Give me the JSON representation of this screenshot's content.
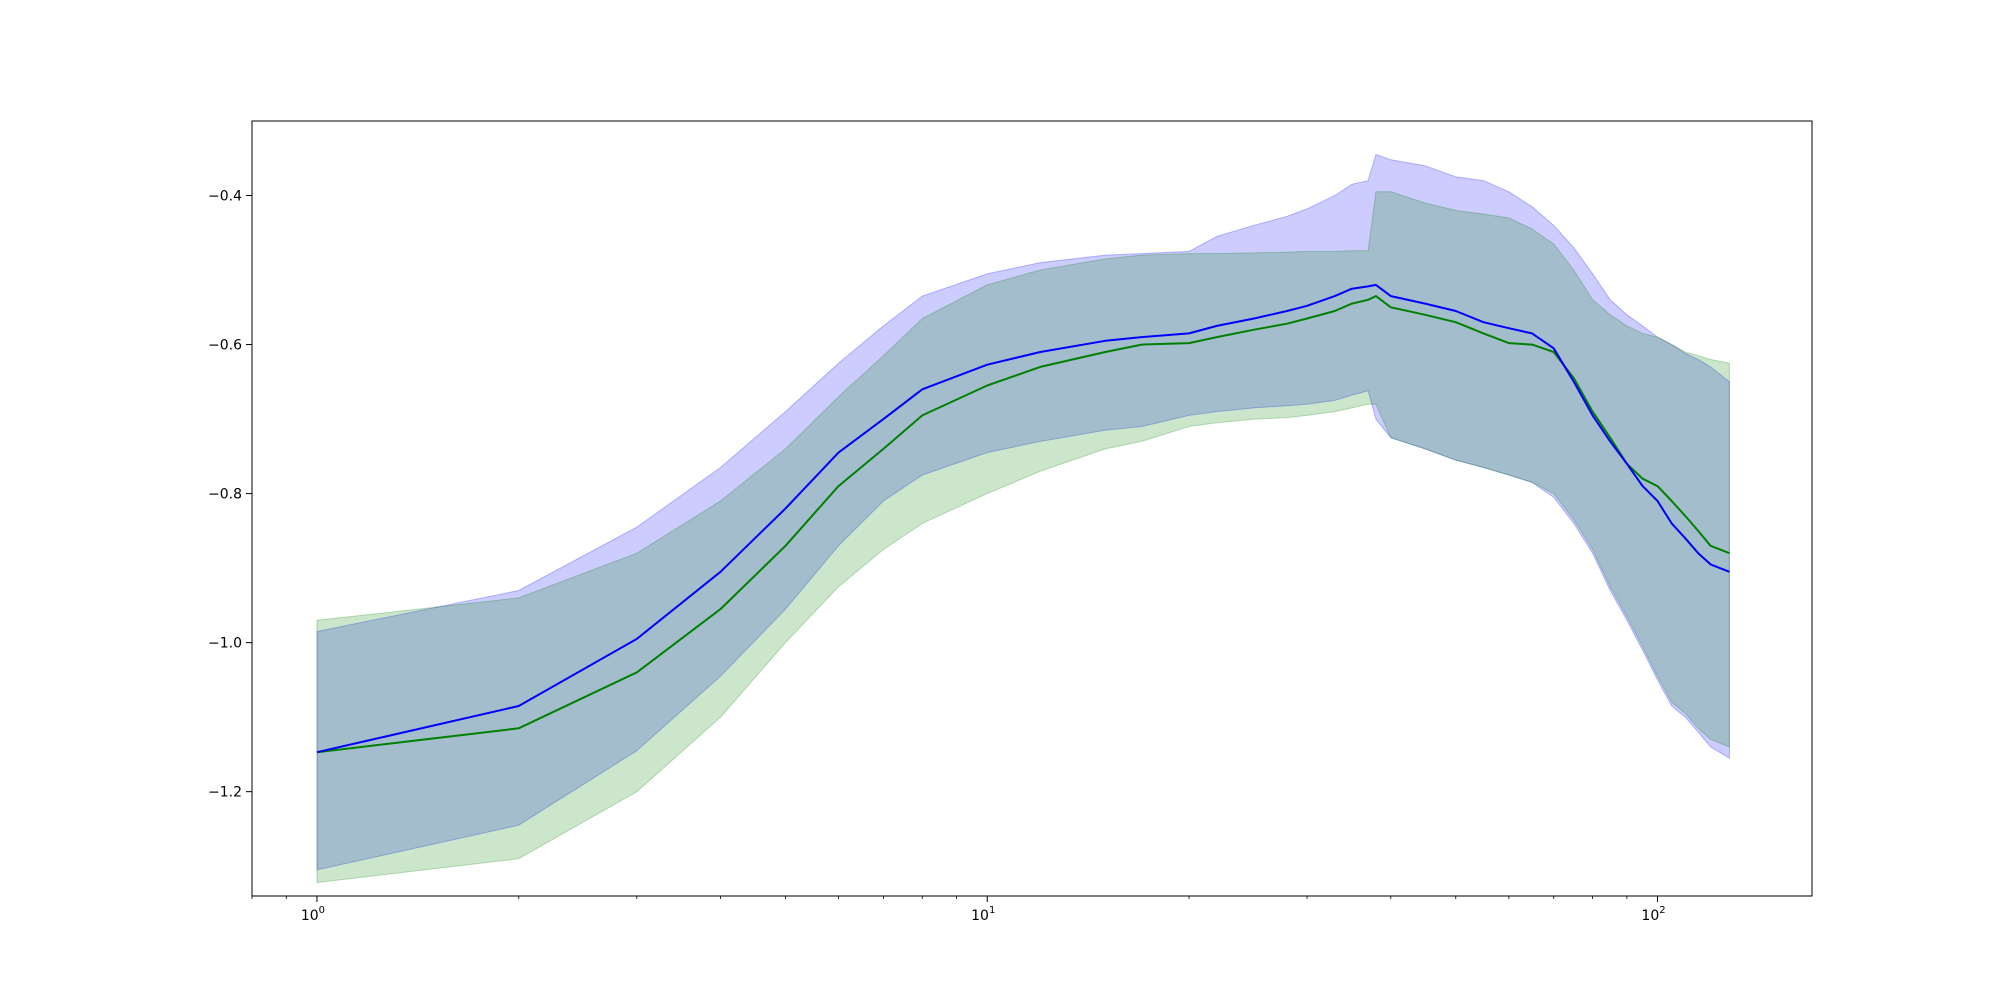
{
  "chart_data": {
    "type": "line",
    "title": "",
    "xlabel": "",
    "ylabel": "",
    "xscale": "log",
    "xlim": [
      0.8,
      170
    ],
    "ylim": [
      -1.34,
      -0.3
    ],
    "grid": false,
    "x_ticks": [
      {
        "value": 1,
        "base": "10",
        "exp": "0"
      },
      {
        "value": 10,
        "base": "10",
        "exp": "1"
      },
      {
        "value": 100,
        "base": "10",
        "exp": "2"
      }
    ],
    "y_ticks": [
      {
        "value": -1.2,
        "label": "−1.2"
      },
      {
        "value": -1.0,
        "label": "−1.0"
      },
      {
        "value": -0.8,
        "label": "−0.8"
      },
      {
        "value": -0.6,
        "label": "−0.6"
      },
      {
        "value": -0.4,
        "label": "−0.4"
      }
    ],
    "series": [
      {
        "color": "#0000ff",
        "band_color": "#0000ff",
        "band_opacity": 0.2,
        "x": [
          1,
          2,
          3,
          4,
          5,
          6,
          7,
          8,
          10,
          12,
          15,
          17,
          20,
          22,
          25,
          28,
          30,
          33,
          35,
          37,
          38,
          40,
          45,
          50,
          55,
          60,
          65,
          70,
          75,
          80,
          85,
          90,
          95,
          100,
          105,
          110,
          115,
          120,
          128
        ],
        "mean": [
          -1.147,
          -1.085,
          -0.995,
          -0.905,
          -0.82,
          -0.745,
          -0.7,
          -0.66,
          -0.627,
          -0.61,
          -0.595,
          -0.59,
          -0.585,
          -0.575,
          -0.565,
          -0.555,
          -0.548,
          -0.535,
          -0.525,
          -0.522,
          -0.52,
          -0.535,
          -0.545,
          -0.555,
          -0.57,
          -0.578,
          -0.585,
          -0.605,
          -0.65,
          -0.695,
          -0.73,
          -0.76,
          -0.79,
          -0.81,
          -0.84,
          -0.86,
          -0.88,
          -0.895,
          -0.905
        ],
        "upper": [
          -0.985,
          -0.93,
          -0.845,
          -0.765,
          -0.69,
          -0.625,
          -0.575,
          -0.535,
          -0.505,
          -0.49,
          -0.48,
          -0.478,
          -0.475,
          -0.455,
          -0.44,
          -0.428,
          -0.418,
          -0.4,
          -0.385,
          -0.38,
          -0.345,
          -0.352,
          -0.36,
          -0.375,
          -0.38,
          -0.395,
          -0.415,
          -0.44,
          -0.47,
          -0.505,
          -0.54,
          -0.56,
          -0.575,
          -0.59,
          -0.6,
          -0.612,
          -0.62,
          -0.63,
          -0.65
        ],
        "lower": [
          -1.305,
          -1.245,
          -1.145,
          -1.045,
          -0.955,
          -0.87,
          -0.81,
          -0.775,
          -0.745,
          -0.73,
          -0.715,
          -0.71,
          -0.695,
          -0.69,
          -0.685,
          -0.682,
          -0.68,
          -0.675,
          -0.668,
          -0.662,
          -0.7,
          -0.725,
          -0.74,
          -0.755,
          -0.765,
          -0.775,
          -0.785,
          -0.805,
          -0.84,
          -0.88,
          -0.93,
          -0.97,
          -1.01,
          -1.05,
          -1.085,
          -1.1,
          -1.12,
          -1.14,
          -1.155
        ]
      },
      {
        "color": "#008000",
        "band_color": "#008000",
        "band_opacity": 0.2,
        "x": [
          1,
          2,
          3,
          4,
          5,
          6,
          7,
          8,
          10,
          12,
          15,
          17,
          20,
          22,
          25,
          28,
          30,
          33,
          35,
          37,
          38,
          40,
          45,
          50,
          55,
          60,
          65,
          70,
          75,
          80,
          85,
          90,
          95,
          100,
          105,
          110,
          115,
          120,
          128
        ],
        "mean": [
          -1.147,
          -1.115,
          -1.04,
          -0.955,
          -0.87,
          -0.79,
          -0.74,
          -0.695,
          -0.655,
          -0.63,
          -0.61,
          -0.6,
          -0.598,
          -0.59,
          -0.58,
          -0.572,
          -0.565,
          -0.555,
          -0.545,
          -0.54,
          -0.535,
          -0.55,
          -0.56,
          -0.57,
          -0.585,
          -0.598,
          -0.6,
          -0.61,
          -0.645,
          -0.69,
          -0.725,
          -0.76,
          -0.78,
          -0.79,
          -0.81,
          -0.83,
          -0.85,
          -0.87,
          -0.88
        ],
        "upper": [
          -0.97,
          -0.94,
          -0.88,
          -0.81,
          -0.74,
          -0.67,
          -0.615,
          -0.565,
          -0.52,
          -0.5,
          -0.485,
          -0.48,
          -0.478,
          -0.478,
          -0.477,
          -0.476,
          -0.475,
          -0.475,
          -0.474,
          -0.474,
          -0.395,
          -0.395,
          -0.41,
          -0.42,
          -0.425,
          -0.43,
          -0.445,
          -0.465,
          -0.5,
          -0.54,
          -0.56,
          -0.575,
          -0.585,
          -0.59,
          -0.6,
          -0.61,
          -0.615,
          -0.62,
          -0.625
        ],
        "lower": [
          -1.322,
          -1.29,
          -1.2,
          -1.1,
          -1.0,
          -0.925,
          -0.875,
          -0.84,
          -0.8,
          -0.77,
          -0.74,
          -0.73,
          -0.71,
          -0.705,
          -0.7,
          -0.698,
          -0.695,
          -0.69,
          -0.685,
          -0.68,
          -0.68,
          -0.725,
          -0.74,
          -0.755,
          -0.765,
          -0.775,
          -0.785,
          -0.8,
          -0.835,
          -0.875,
          -0.925,
          -0.965,
          -1.005,
          -1.045,
          -1.08,
          -1.095,
          -1.115,
          -1.13,
          -1.14
        ]
      }
    ]
  }
}
